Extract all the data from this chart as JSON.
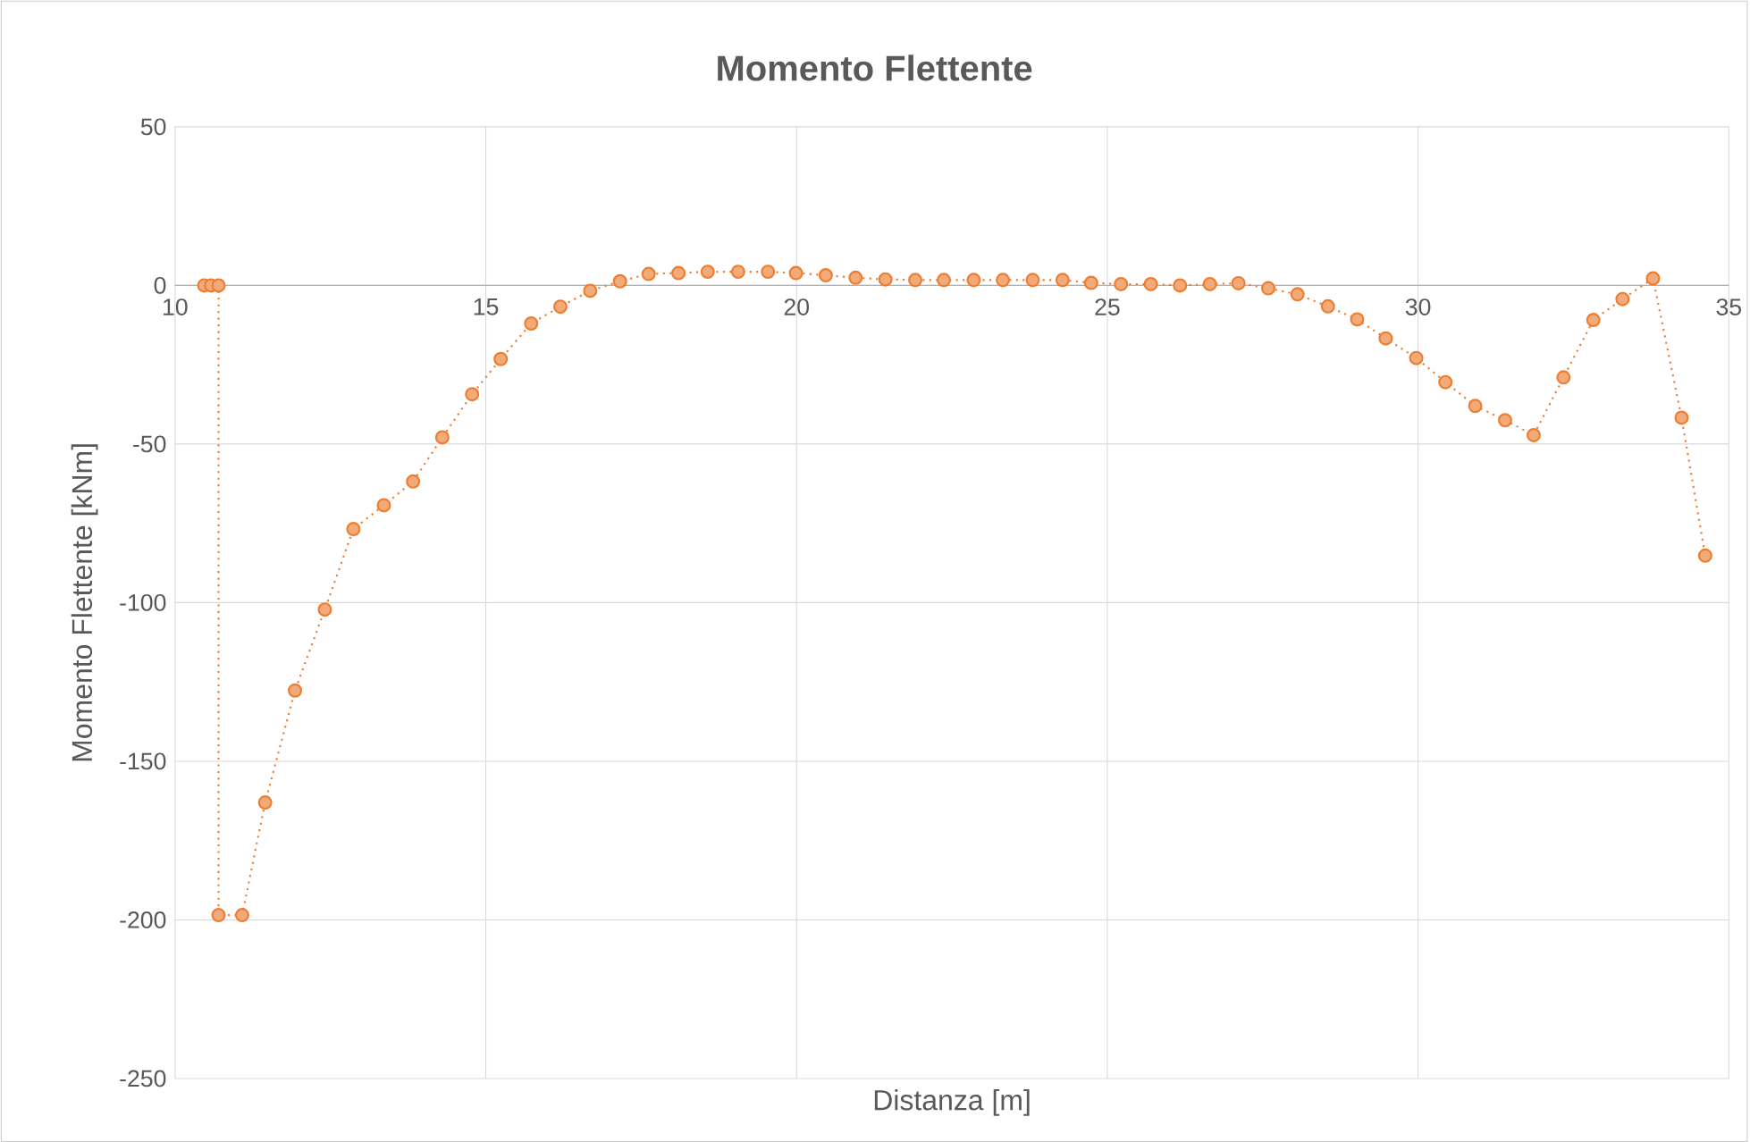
{
  "chart_data": {
    "type": "line",
    "title": "Momento Flettente",
    "xlabel": "Distanza [m]",
    "ylabel": "Momento Flettente [kNm]",
    "xlim": [
      10,
      35
    ],
    "xticks": [
      10,
      15,
      20,
      25,
      30,
      35
    ],
    "ylim": [
      -250,
      50
    ],
    "yticks": [
      -250,
      -200,
      -150,
      -100,
      -50,
      0,
      50
    ],
    "grid": true,
    "marker": "circle",
    "line_style": "dotted",
    "series": [
      {
        "color": "#ed7d31",
        "x": [
          10.47,
          10.58,
          10.7,
          10.7,
          11.08,
          11.45,
          11.93,
          12.41,
          12.87,
          13.36,
          13.83,
          14.3,
          14.78,
          15.24,
          15.73,
          16.2,
          16.68,
          17.16,
          17.62,
          18.1,
          18.57,
          19.06,
          19.54,
          19.99,
          20.47,
          20.95,
          21.43,
          21.91,
          22.37,
          22.85,
          23.32,
          23.8,
          24.28,
          24.74,
          25.22,
          25.7,
          26.17,
          26.65,
          27.11,
          27.59,
          28.06,
          28.55,
          29.02,
          29.48,
          29.97,
          30.44,
          30.92,
          31.4,
          31.86,
          32.34,
          32.82,
          33.29,
          33.78,
          34.24,
          34.62
        ],
        "values": [
          0,
          0,
          0,
          -198.5,
          -198.5,
          -163,
          -127.7,
          -102.2,
          -76.8,
          -69.3,
          -61.8,
          -47.9,
          -34.3,
          -23.2,
          -12,
          -6.7,
          -1.7,
          1.3,
          3.6,
          3.9,
          4.3,
          4.3,
          4.3,
          3.9,
          3.2,
          2.4,
          1.9,
          1.7,
          1.7,
          1.7,
          1.7,
          1.7,
          1.7,
          0.8,
          0.4,
          0.4,
          0,
          0.4,
          0.7,
          -0.9,
          -2.8,
          -6.6,
          -10.7,
          -16.7,
          -22.9,
          -30.5,
          -38,
          -42.5,
          -47.2,
          -29,
          -10.9,
          -4.3,
          2.2,
          -41.7,
          -85.2
        ]
      }
    ]
  }
}
